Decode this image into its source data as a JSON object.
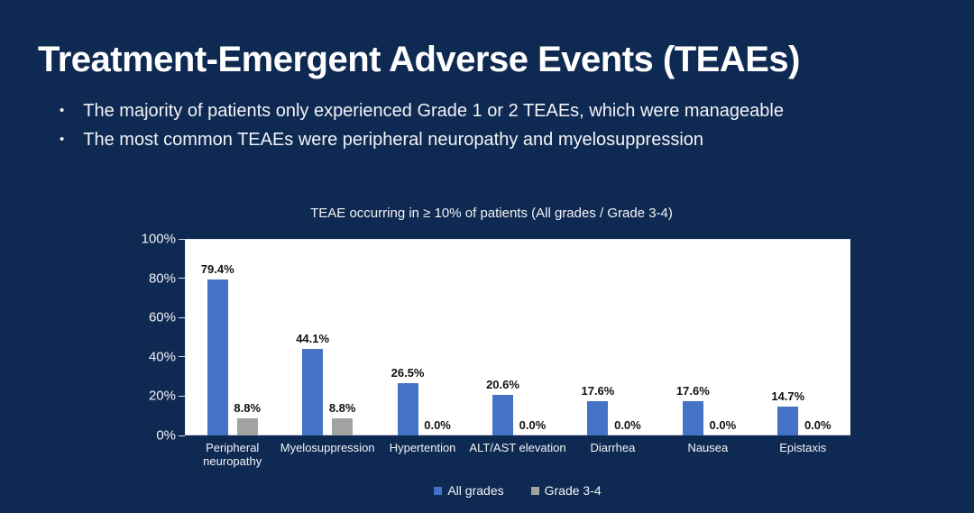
{
  "slide": {
    "title": "Treatment-Emergent Adverse Events (TEAEs)",
    "bullets": [
      "The majority of patients only experienced Grade 1 or 2 TEAEs, which were manageable",
      "The most common TEAEs were peripheral neuropathy and myelosuppression"
    ],
    "bullet_marker": "•"
  },
  "chart_data": {
    "type": "bar",
    "title": "TEAE occurring in ≥ 10% of patients (All grades / Grade 3-4)",
    "categories": [
      "Peripheral neuropathy",
      "Myelosuppression",
      "Hypertention",
      "ALT/AST elevation",
      "Diarrhea",
      "Nausea",
      "Epistaxis"
    ],
    "series": [
      {
        "name": "All grades",
        "color": "#4472C4",
        "values": [
          79.4,
          44.1,
          26.5,
          20.6,
          17.6,
          17.6,
          14.7
        ]
      },
      {
        "name": "Grade 3-4",
        "color": "#A2A2A2",
        "values": [
          8.8,
          8.8,
          0.0,
          0.0,
          0.0,
          0.0,
          0.0
        ]
      }
    ],
    "xlabel": "",
    "ylabel": "",
    "ylim": [
      0,
      100
    ],
    "yticks": [
      0,
      20,
      40,
      60,
      80,
      100
    ],
    "ytick_suffix": "%",
    "data_labels": true,
    "data_label_decimals": 1,
    "grid": false,
    "legend_position": "bottom",
    "plot_background": "#FFFFFF"
  },
  "colors": {
    "background": "#0F2A52",
    "title_text": "#FFFFFF",
    "body_text": "#F2F3F7",
    "data_label_text": "#111111"
  }
}
